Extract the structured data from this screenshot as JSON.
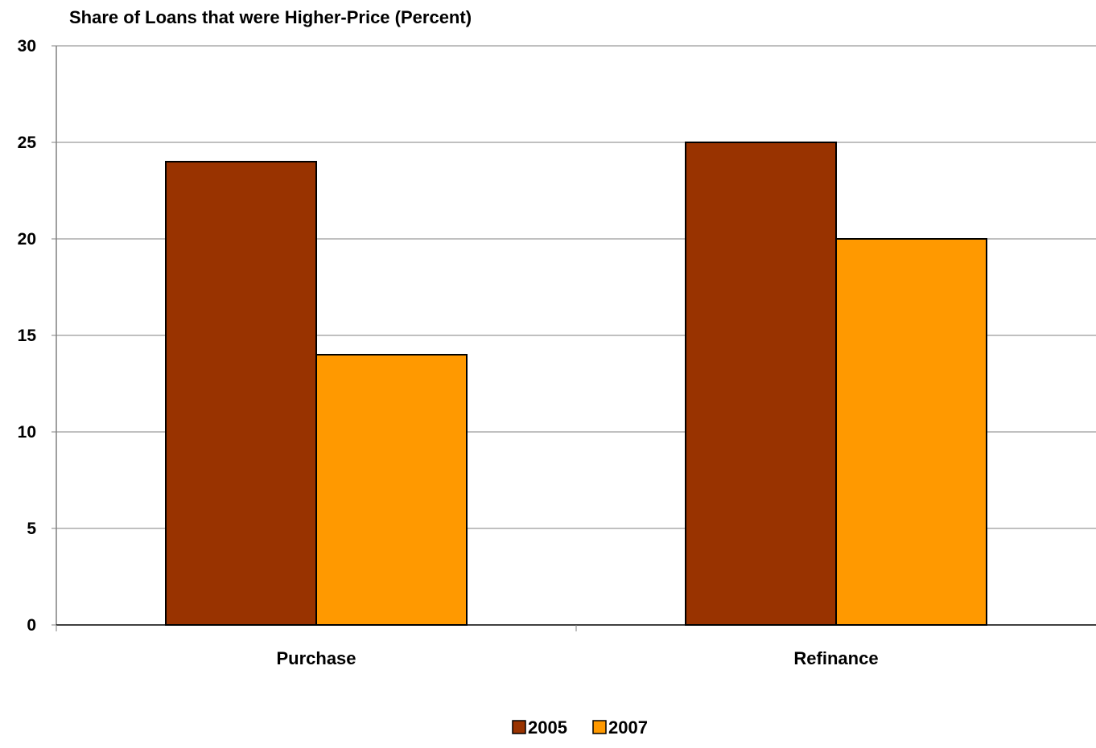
{
  "chart_data": {
    "type": "bar",
    "title": "Share of Loans that were Higher-Price (Percent)",
    "xlabel": "",
    "ylabel": "",
    "categories": [
      "Purchase",
      "Refinance"
    ],
    "series": [
      {
        "name": "2005",
        "color": "#993300",
        "values": [
          24,
          25
        ]
      },
      {
        "name": "2007",
        "color": "#FF9900",
        "values": [
          14,
          20
        ]
      }
    ],
    "ylim": [
      0,
      30
    ],
    "yticks": [
      0,
      5,
      10,
      15,
      20,
      25,
      30
    ],
    "grid": true,
    "legend_position": "bottom"
  }
}
